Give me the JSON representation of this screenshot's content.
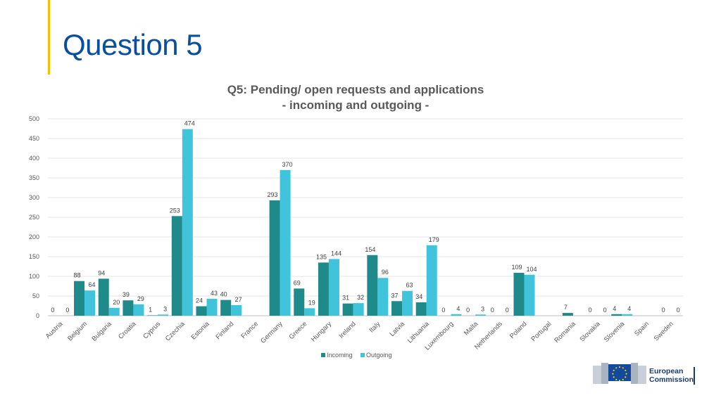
{
  "slide": {
    "title": "Question 5"
  },
  "logo": {
    "line1": "European",
    "line2": "Commission"
  },
  "colors": {
    "incoming": "#1f8a8a",
    "outgoing": "#40c4dc",
    "accent": "#f2c200",
    "title": "#0a4f9e"
  },
  "chart_data": {
    "type": "bar",
    "title_line1": "Q5: Pending/ open requests and applications",
    "title_line2": "- incoming and outgoing -",
    "categories": [
      "Austria",
      "Belgium",
      "Bulgaria",
      "Croatia",
      "Cyprus",
      "Czechia",
      "Estonia",
      "Finland",
      "France",
      "Germany",
      "Greece",
      "Hungary",
      "Ireland",
      "Italy",
      "Latvia",
      "Lithuania",
      "Luxembourg",
      "Malta",
      "Netherlands",
      "Poland",
      "Portugal",
      "Romania",
      "Slovakia",
      "Slovenia",
      "Spain",
      "Sweden"
    ],
    "series": [
      {
        "name": "Incoming",
        "values": [
          0,
          88,
          94,
          39,
          1,
          253,
          24,
          40,
          null,
          293,
          69,
          135,
          31,
          154,
          37,
          34,
          0,
          0,
          0,
          109,
          null,
          7,
          0,
          4,
          null,
          0
        ]
      },
      {
        "name": "Outgoing",
        "values": [
          0,
          64,
          20,
          29,
          3,
          474,
          43,
          27,
          null,
          370,
          19,
          144,
          32,
          96,
          63,
          179,
          4,
          3,
          0,
          104,
          null,
          null,
          0,
          4,
          null,
          0
        ]
      }
    ],
    "ylim": [
      0,
      500
    ],
    "yticks": [
      0,
      50,
      100,
      150,
      200,
      250,
      300,
      350,
      400,
      450,
      500
    ],
    "grid": true,
    "legend": "bottom"
  }
}
